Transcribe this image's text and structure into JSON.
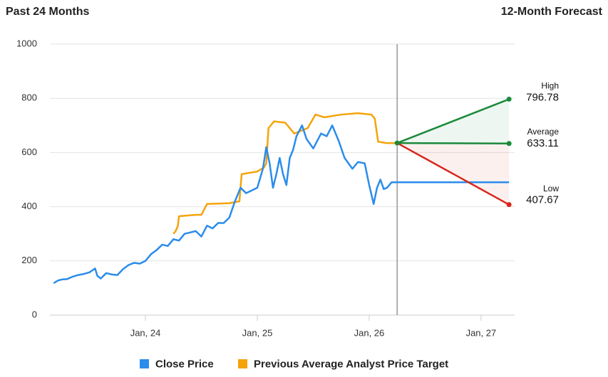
{
  "chart_data": {
    "type": "line",
    "title": "Past 24 Months",
    "forecast_title": "12-Month Forecast",
    "xlim": [
      2023.146,
      2027.3
    ],
    "xticks": [
      {
        "value": 2024,
        "label": "Jan, 24"
      },
      {
        "value": 2025,
        "label": "Jan, 25"
      },
      {
        "value": 2026,
        "label": "Jan, 26"
      },
      {
        "value": 2027,
        "label": "Jan, 27"
      }
    ],
    "ylim": [
      0,
      1000
    ],
    "yticks": [
      0,
      200,
      400,
      600,
      800,
      1000
    ],
    "grid": true,
    "series": [
      {
        "name": "Close Price",
        "color": "#2b8ceb",
        "x": [
          2023.18,
          2023.22,
          2023.26,
          2023.3,
          2023.35,
          2023.4,
          2023.45,
          2023.5,
          2023.55,
          2023.57,
          2023.6,
          2023.65,
          2023.7,
          2023.75,
          2023.8,
          2023.85,
          2023.9,
          2023.95,
          2024.0,
          2024.05,
          2024.1,
          2024.15,
          2024.2,
          2024.25,
          2024.3,
          2024.35,
          2024.4,
          2024.45,
          2024.5,
          2024.55,
          2024.6,
          2024.65,
          2024.7,
          2024.75,
          2024.8,
          2024.85,
          2024.9,
          2024.95,
          2025.0,
          2025.05,
          2025.08,
          2025.11,
          2025.14,
          2025.17,
          2025.2,
          2025.23,
          2025.26,
          2025.29,
          2025.32,
          2025.35,
          2025.4,
          2025.44,
          2025.5,
          2025.57,
          2025.62,
          2025.67,
          2025.73,
          2025.78,
          2025.85,
          2025.9,
          2025.96,
          2026.0,
          2026.04,
          2026.07,
          2026.1,
          2026.13,
          2026.16,
          2026.2,
          2026.25
        ],
        "values": [
          118,
          128,
          132,
          133,
          142,
          148,
          152,
          158,
          172,
          145,
          135,
          155,
          150,
          148,
          170,
          185,
          193,
          190,
          200,
          225,
          240,
          260,
          255,
          280,
          275,
          300,
          305,
          310,
          290,
          330,
          320,
          340,
          340,
          360,
          420,
          470,
          450,
          460,
          470,
          540,
          620,
          560,
          470,
          520,
          580,
          520,
          480,
          580,
          610,
          660,
          700,
          650,
          615,
          670,
          660,
          700,
          640,
          580,
          540,
          565,
          560,
          480,
          410,
          470,
          500,
          465,
          470,
          490,
          490
        ]
      },
      {
        "name": "Previous Average Analyst Price Target",
        "color": "#f5a30a",
        "x": [
          2024.25,
          2024.27,
          2024.29,
          2024.3,
          2024.45,
          2024.5,
          2024.55,
          2024.75,
          2024.84,
          2024.86,
          2025.0,
          2025.06,
          2025.08,
          2025.1,
          2025.15,
          2025.25,
          2025.33,
          2025.45,
          2025.52,
          2025.6,
          2025.75,
          2025.9,
          2026.02,
          2026.05,
          2026.08,
          2026.15,
          2026.25
        ],
        "values": [
          300,
          310,
          330,
          365,
          370,
          370,
          410,
          413,
          420,
          520,
          530,
          545,
          560,
          690,
          715,
          710,
          670,
          690,
          740,
          730,
          740,
          745,
          740,
          725,
          640,
          635,
          635
        ]
      }
    ],
    "forecast": {
      "x": [
        2026.25,
        2027.25
      ],
      "start": 635,
      "last_price": 490,
      "high": {
        "label": "High",
        "value": 796.78,
        "color": "#1a8a3a"
      },
      "average": {
        "label": "Average",
        "value": 633.11,
        "color": "#1a8a3a"
      },
      "low": {
        "label": "Low",
        "value": 407.67,
        "color": "#d9261c"
      }
    }
  }
}
